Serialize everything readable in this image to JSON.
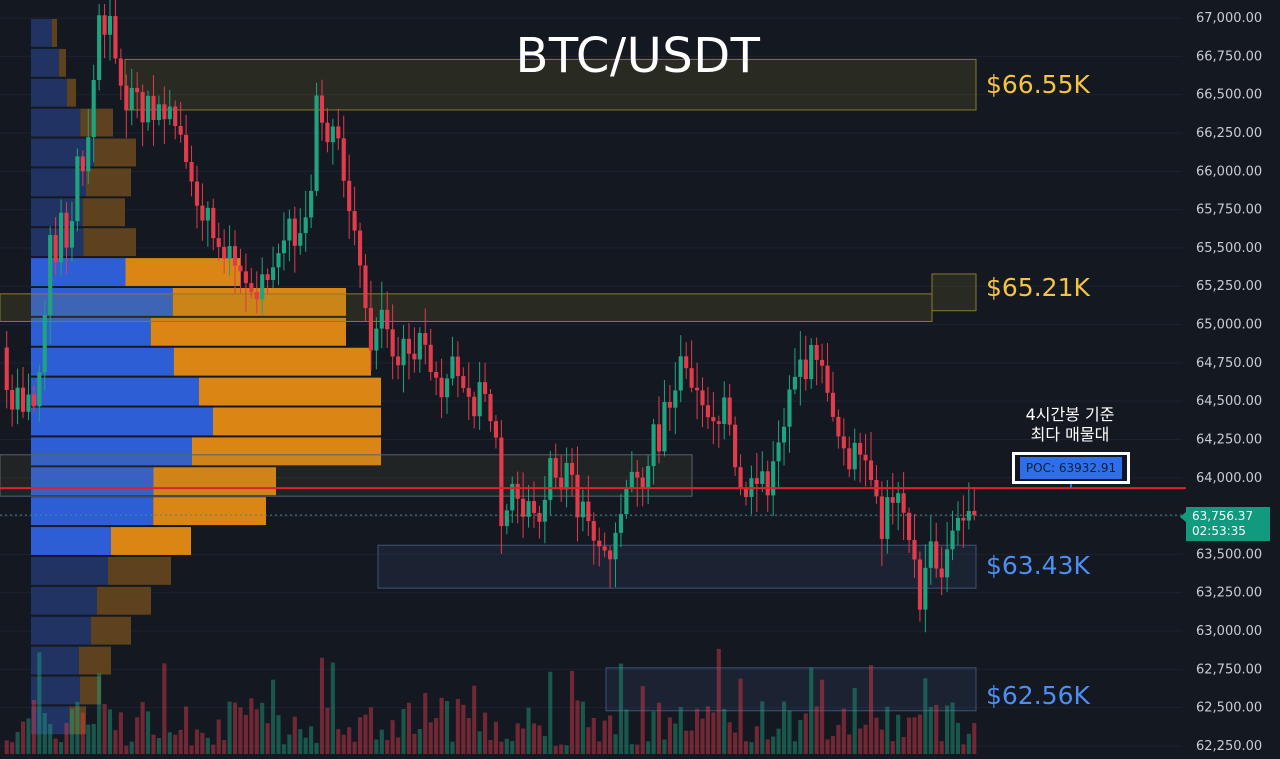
{
  "chart_data": {
    "type": "candlestick",
    "title": "BTC/USDT",
    "y_axis": {
      "range": [
        62250,
        67000
      ],
      "tick_labels": [
        "67,000.00",
        "66,750.00",
        "66,500.00",
        "66,250.00",
        "66,000.00",
        "65,750.00",
        "65,500.00",
        "65,250.00",
        "65,000.00",
        "64,750.00",
        "64,500.00",
        "64,250.00",
        "64,000.00",
        "63,750.00",
        "63,500.00",
        "63,250.00",
        "63,000.00",
        "62,750.00",
        "62,500.00",
        "62,250.00"
      ],
      "tick_values": [
        67000,
        66750,
        66500,
        66250,
        66000,
        65750,
        65500,
        65250,
        65000,
        64750,
        64500,
        64250,
        64000,
        63750,
        63500,
        63250,
        63000,
        62750,
        62500,
        62250
      ],
      "position": "right"
    },
    "current_price": {
      "value": 63756.37,
      "label": "63,756.37",
      "countdown": "02:53:35",
      "color": "#129a7e"
    },
    "poc": {
      "value": 63932.91,
      "label": "POC: 63932.91",
      "color": "#e0202b",
      "annotation_line1": "4시간봉 기준",
      "annotation_line2": "최다 매물대"
    },
    "zones": [
      {
        "label": "$66.55K",
        "low": 66400,
        "high": 66730,
        "color": "#f5c242"
      },
      {
        "label": "$65.21K",
        "low": 65020,
        "high": 65200,
        "color": "#f5c242"
      },
      {
        "label": "$63.43K",
        "low": 63280,
        "high": 63560,
        "color": "#4c8ff0"
      },
      {
        "label": "$62.56K",
        "low": 62480,
        "high": 62760,
        "color": "#4c8ff0"
      }
    ],
    "mid_zone": {
      "low": 63880,
      "high": 64150
    },
    "volume_profile": {
      "row_step": 195,
      "rows_top_price": 67000,
      "value_area": {
        "low": 63400,
        "high": 65350
      },
      "buy_share": [
        0.8,
        0.8,
        0.8,
        0.6,
        0.6,
        0.55,
        0.55,
        0.5,
        0.45,
        0.45,
        0.38,
        0.42,
        0.48,
        0.52,
        0.46,
        0.5,
        0.52,
        0.5,
        0.55,
        0.55,
        0.6,
        0.6,
        0.7,
        0.7
      ],
      "total": [
        26,
        35,
        45,
        82,
        105,
        100,
        94,
        105,
        210,
        315,
        315,
        340,
        350,
        350,
        350,
        245,
        235,
        160,
        140,
        120,
        100,
        80,
        70,
        55
      ]
    },
    "candles": {
      "start_price": 64850,
      "moves": [
        -300,
        -150,
        120,
        -180,
        90,
        -100,
        200,
        350,
        500,
        -200,
        300,
        -250,
        150,
        400,
        -120,
        200,
        350,
        400,
        -150,
        100,
        -300,
        -200,
        -180,
        120,
        -50,
        -220,
        150,
        -180,
        80,
        -120,
        60,
        -150,
        -80,
        -200,
        -150,
        -180,
        -120,
        60,
        -220,
        -80,
        -100,
        60,
        -150,
        -60,
        -100,
        -80,
        -70,
        140,
        -60,
        60,
        70,
        60,
        120,
        -200,
        60,
        80,
        150,
        600,
        -200,
        -150,
        80,
        -100,
        -300,
        -220,
        -150,
        -250,
        -300,
        -300,
        120,
        100,
        -150,
        -200,
        -80,
        150,
        -120,
        -60,
        150,
        -100,
        -200,
        -60,
        -150,
        100,
        120,
        -150,
        -100,
        -80,
        -150,
        200,
        -100,
        -200,
        -130,
        -600,
        80,
        150,
        -120,
        -140,
        80,
        -100,
        -80,
        120,
        250,
        -150,
        -100,
        150,
        -100,
        -300,
        80,
        -150,
        -150,
        -60,
        -50,
        -80,
        150,
        100,
        150,
        80,
        -60,
        -90,
        120,
        250,
        -200,
        300,
        -60,
        90,
        200,
        -100,
        -150,
        -40,
        -120,
        -100,
        -50,
        -40,
        150,
        -200,
        -300,
        -160,
        -80,
        100,
        -60,
        60,
        -180,
        200,
        100,
        80,
        220,
        60,
        90,
        -150,
        200,
        -120,
        -60,
        -200,
        -180,
        -150,
        -100,
        -160,
        150,
        -100,
        -60,
        -150,
        -130,
        -300,
        250,
        -60,
        40,
        -150,
        -200,
        -150,
        -350,
        250,
        150,
        -200,
        -80,
        160,
        100,
        60,
        -40,
        40,
        -50
      ]
    }
  }
}
